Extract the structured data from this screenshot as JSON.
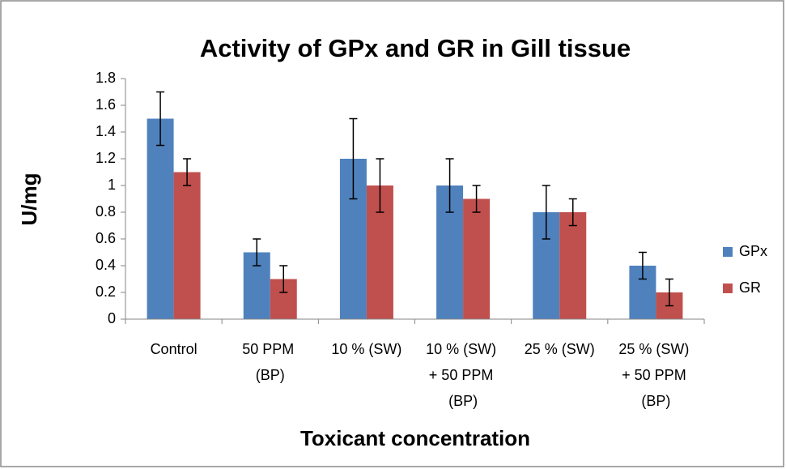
{
  "chart_data": {
    "type": "bar",
    "title": "Activity of GPx and GR in Gill tissue",
    "x_label": "Toxicant concentration",
    "y_label": "U/mg",
    "categories": [
      "Control",
      "50 PPM (BP)",
      "10 % (SW)",
      "10 % (SW) + 50 PPM (BP)",
      "25 % (SW)",
      "25 % (SW) + 50 PPM (BP)"
    ],
    "series": [
      {
        "name": "GPx",
        "color": "#4f81bd",
        "values": [
          1.5,
          0.5,
          1.2,
          1.0,
          0.8,
          0.4
        ],
        "errors": [
          0.2,
          0.1,
          0.3,
          0.2,
          0.2,
          0.1
        ]
      },
      {
        "name": "GR",
        "color": "#c0504d",
        "values": [
          1.1,
          0.3,
          1.0,
          0.9,
          0.8,
          0.2
        ],
        "errors": [
          0.1,
          0.1,
          0.2,
          0.1,
          0.1,
          0.1
        ]
      }
    ],
    "ylim": [
      0,
      1.8
    ],
    "yticks": [
      0,
      0.2,
      0.4,
      0.6,
      0.8,
      1,
      1.2,
      1.4,
      1.6,
      1.8
    ],
    "grid": false,
    "legend": "right"
  }
}
